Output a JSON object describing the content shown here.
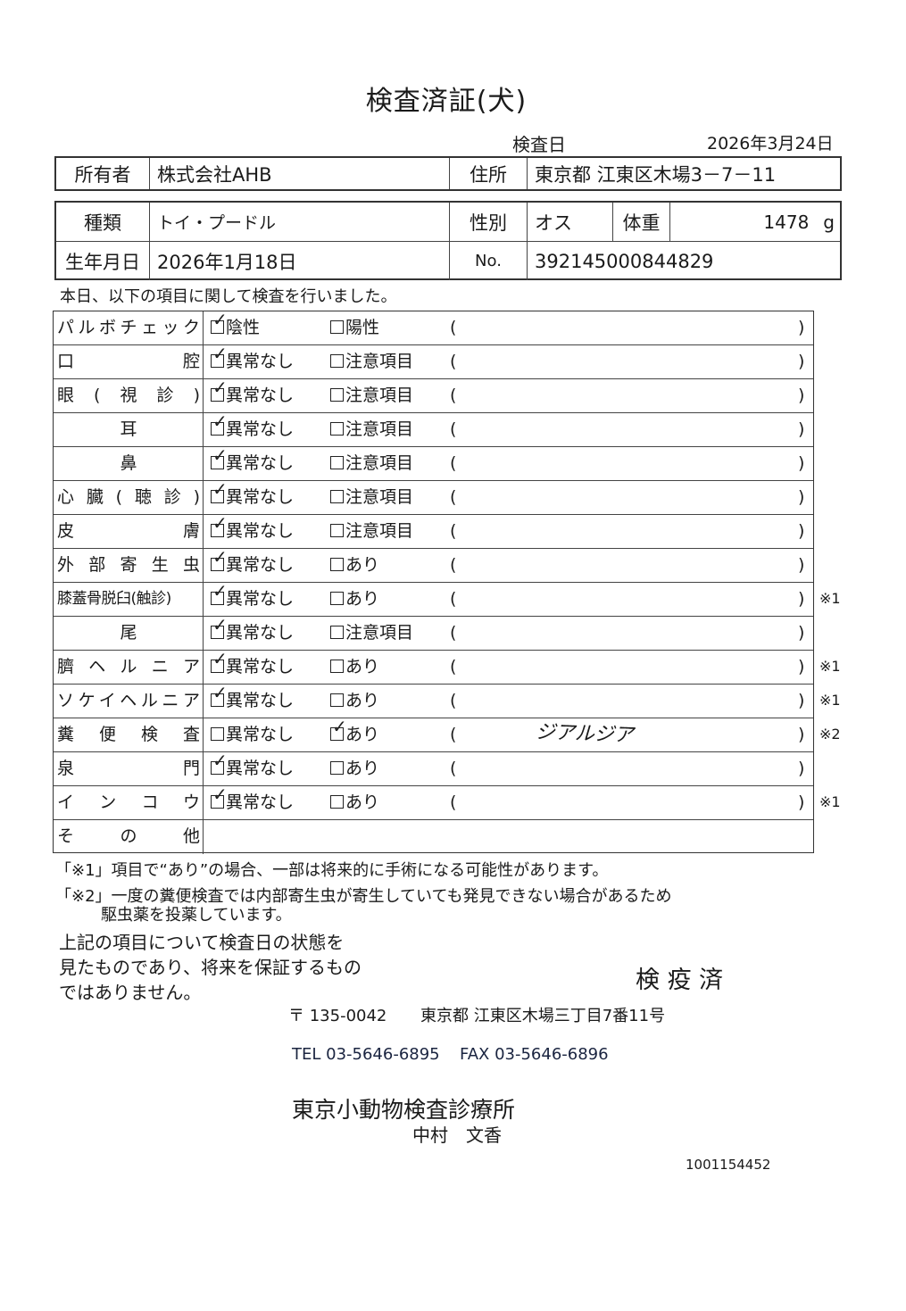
{
  "title": "検査済証(犬)",
  "exam_date": {
    "label": "検査日",
    "value": "2026年3月24日"
  },
  "owner": {
    "label": "所有者",
    "value": "株式会社AHB",
    "address_label": "住所",
    "address": "東京都 江東区木場3－7－11"
  },
  "pet": {
    "type_label": "種類",
    "type": "トイ・プードル",
    "sex_label": "性別",
    "sex": "オス",
    "weight_label": "体重",
    "weight": "1478",
    "weight_unit": "g",
    "birth_label": "生年月日",
    "birth": "2026年1月18日",
    "no_label": "No.",
    "no": "392145000844829"
  },
  "intro": "本日、以下の項目に関して検査を行いました。",
  "checkmark": "✓",
  "paren_open": "(",
  "paren_close": ")",
  "items": [
    {
      "label": "パルボチェック",
      "opt1": "陰性",
      "opt2": "陽性",
      "checked": 1,
      "memo": "",
      "note": "",
      "align": "j"
    },
    {
      "label": "口腔",
      "opt1": "異常なし",
      "opt2": "注意項目",
      "checked": 1,
      "memo": "",
      "note": "",
      "align": "j"
    },
    {
      "label": "眼(視診)",
      "opt1": "異常なし",
      "opt2": "注意項目",
      "checked": 1,
      "memo": "",
      "note": "",
      "align": "j"
    },
    {
      "label": "耳",
      "opt1": "異常なし",
      "opt2": "注意項目",
      "checked": 1,
      "memo": "",
      "note": "",
      "align": "c"
    },
    {
      "label": "鼻",
      "opt1": "異常なし",
      "opt2": "注意項目",
      "checked": 1,
      "memo": "",
      "note": "",
      "align": "c"
    },
    {
      "label": "心臓(聴診)",
      "opt1": "異常なし",
      "opt2": "注意項目",
      "checked": 1,
      "memo": "",
      "note": "",
      "align": "j"
    },
    {
      "label": "皮膚",
      "opt1": "異常なし",
      "opt2": "注意項目",
      "checked": 1,
      "memo": "",
      "note": "",
      "align": "j"
    },
    {
      "label": "外部寄生虫",
      "opt1": "異常なし",
      "opt2": "あり",
      "checked": 1,
      "memo": "",
      "note": "",
      "align": "j"
    },
    {
      "label": "膝蓋骨脱臼(触診)",
      "opt1": "異常なし",
      "opt2": "あり",
      "checked": 1,
      "memo": "",
      "note": "※1",
      "align": "n"
    },
    {
      "label": "尾",
      "opt1": "異常なし",
      "opt2": "注意項目",
      "checked": 1,
      "memo": "",
      "note": "",
      "align": "c"
    },
    {
      "label": "臍ヘルニア",
      "opt1": "異常なし",
      "opt2": "あり",
      "checked": 1,
      "memo": "",
      "note": "※1",
      "align": "j"
    },
    {
      "label": "ソケイヘルニア",
      "opt1": "異常なし",
      "opt2": "あり",
      "checked": 1,
      "memo": "",
      "note": "※1",
      "align": "j"
    },
    {
      "label": "糞便検査",
      "opt1": "異常なし",
      "opt2": "あり",
      "checked": 2,
      "memo": "ジアルジア",
      "note": "※2",
      "align": "j"
    },
    {
      "label": "泉門",
      "opt1": "異常なし",
      "opt2": "あり",
      "checked": 1,
      "memo": "",
      "note": "",
      "align": "j"
    },
    {
      "label": "インコウ",
      "opt1": "異常なし",
      "opt2": "あり",
      "checked": 1,
      "memo": "",
      "note": "※1",
      "align": "j"
    },
    {
      "label": "その他",
      "opt1": "",
      "opt2": "",
      "checked": 0,
      "memo": "",
      "note": "",
      "align": "j"
    }
  ],
  "footnotes": {
    "note1": "「※1」項目で“あり”の場合、一部は将来的に手術になる可能性があります。",
    "note2": "「※2」一度の糞便検査では内部寄生虫が寄生していても発見できない場合があるため",
    "note2b": "駆虫薬を投薬しています。"
  },
  "disclaimer": [
    "上記の項目について検査日の状態を",
    "見たものであり、将来を保証するもの",
    "ではありません。"
  ],
  "stamp": "検 疫 済",
  "clinic": {
    "postal": "〒 135-0042",
    "address": "東京都 江東区木場三丁目7番11号",
    "tel": "TEL 03-5646-6895",
    "fax": "FAX 03-5646-6896",
    "name": "東京小動物検査診療所",
    "person": "中村　文香"
  },
  "doc_number": "1001154452"
}
